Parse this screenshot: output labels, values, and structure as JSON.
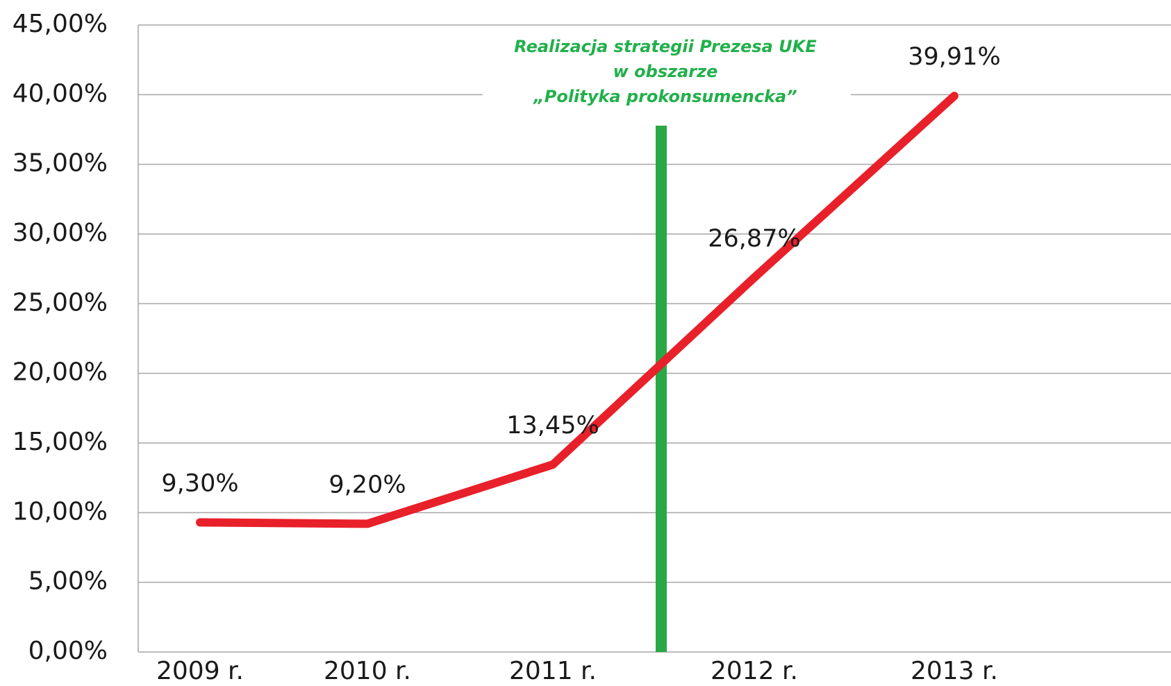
{
  "chart_data": {
    "type": "line",
    "annotation": [
      "Realizacja strategii Prezesa UKE",
      "w obszarze",
      "„Polityka prokonsumencka”"
    ],
    "categories": [
      "2009 r.",
      "2010 r.",
      "2011 r.",
      "2012 r.",
      "2013 r."
    ],
    "series": [
      {
        "color": "#e8202a",
        "values": [
          9.3,
          9.2,
          13.45,
          26.87,
          39.91
        ],
        "value_labels": [
          "9,30%",
          "9,20%",
          "13,45%",
          "26,87%",
          "39,91%"
        ]
      }
    ],
    "ylim": [
      0,
      45
    ],
    "yticks": [
      {
        "value": 0,
        "label": "0,00%"
      },
      {
        "value": 5,
        "label": "5,00%"
      },
      {
        "value": 10,
        "label": "10,00%"
      },
      {
        "value": 15,
        "label": "15,00%"
      },
      {
        "value": 20,
        "label": "20,00%"
      },
      {
        "value": 25,
        "label": "25,00%"
      },
      {
        "value": 30,
        "label": "30,00%"
      },
      {
        "value": 35,
        "label": "35,00%"
      },
      {
        "value": 40,
        "label": "40,00%"
      },
      {
        "value": 45,
        "label": "45,00%"
      }
    ],
    "grid": true
  }
}
